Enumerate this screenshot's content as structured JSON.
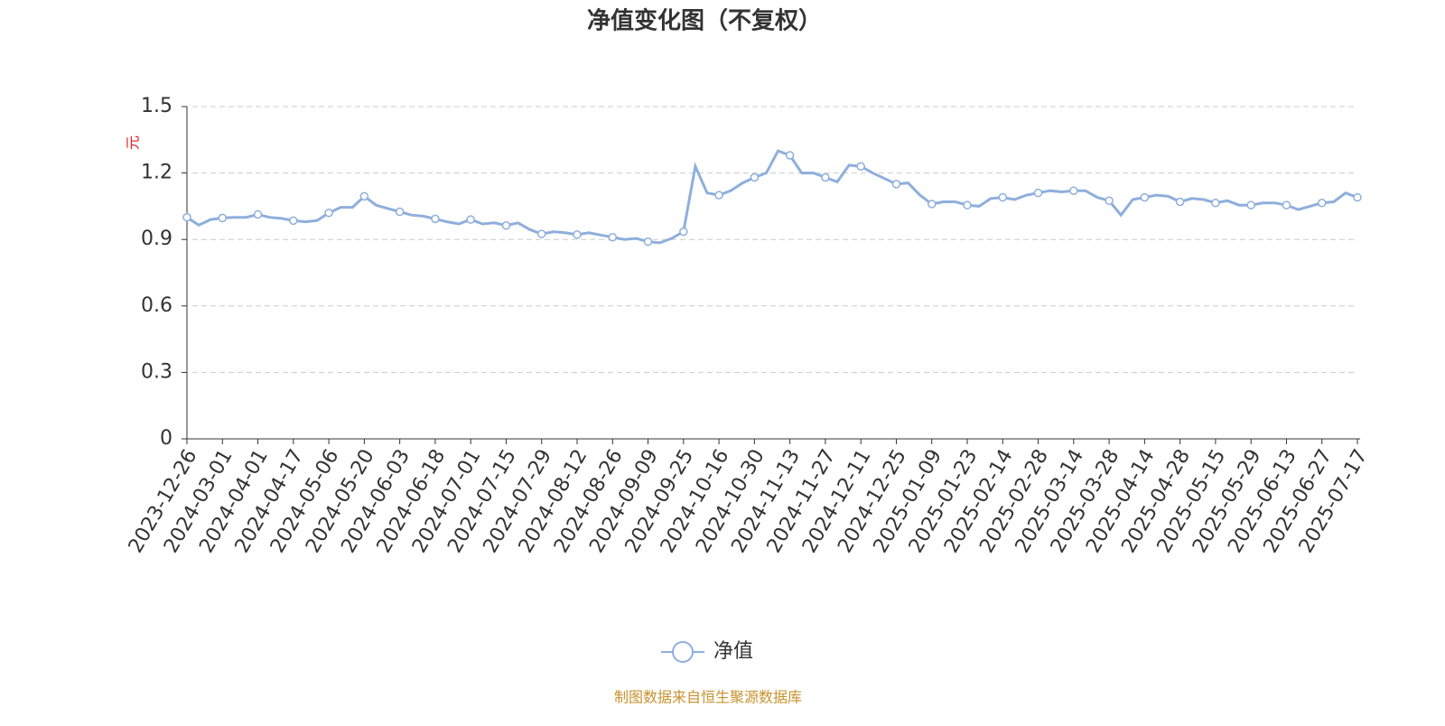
{
  "chart_data": {
    "type": "line",
    "title": "净值变化图（不复权）",
    "y_label": "元",
    "source": "制图数据来自恒生聚源数据库",
    "categories": [
      "2023-12-26",
      null,
      null,
      "2024-03-01",
      null,
      null,
      "2024-04-01",
      null,
      null,
      "2024-04-17",
      null,
      null,
      "2024-05-06",
      null,
      null,
      "2024-05-20",
      null,
      null,
      "2024-06-03",
      null,
      null,
      "2024-06-18",
      null,
      null,
      "2024-07-01",
      null,
      null,
      "2024-07-15",
      null,
      null,
      "2024-07-29",
      null,
      null,
      "2024-08-12",
      null,
      null,
      "2024-08-26",
      null,
      null,
      "2024-09-09",
      null,
      null,
      "2024-09-25",
      null,
      null,
      "2024-10-16",
      null,
      null,
      "2024-10-30",
      null,
      null,
      "2024-11-13",
      null,
      null,
      "2024-11-27",
      null,
      null,
      "2024-12-11",
      null,
      null,
      "2024-12-25",
      null,
      null,
      "2025-01-09",
      null,
      null,
      "2025-01-23",
      null,
      null,
      "2025-02-14",
      null,
      null,
      "2025-02-28",
      null,
      null,
      "2025-03-14",
      null,
      null,
      "2025-03-28",
      null,
      null,
      "2025-04-14",
      null,
      null,
      "2025-04-28",
      null,
      null,
      "2025-05-15",
      null,
      null,
      "2025-05-29",
      null,
      null,
      "2025-06-13",
      null,
      null,
      "2025-06-27",
      null,
      null,
      "2025-07-17"
    ],
    "series": [
      {
        "name": "净值",
        "color": "#8eafdc",
        "values": [
          1.0,
          0.965,
          0.99,
          0.997,
          1.0,
          1.0,
          1.013,
          1.0,
          0.995,
          0.985,
          0.98,
          0.985,
          1.02,
          1.045,
          1.045,
          1.095,
          1.055,
          1.04,
          1.025,
          1.01,
          1.005,
          0.993,
          0.98,
          0.97,
          0.99,
          0.97,
          0.975,
          0.963,
          0.975,
          0.945,
          0.925,
          0.935,
          0.93,
          0.922,
          0.93,
          0.92,
          0.91,
          0.9,
          0.905,
          0.89,
          0.885,
          0.905,
          0.935,
          1.23,
          1.11,
          1.1,
          1.12,
          1.155,
          1.18,
          1.2,
          1.3,
          1.28,
          1.2,
          1.2,
          1.18,
          1.16,
          1.235,
          1.23,
          1.2,
          1.175,
          1.15,
          1.155,
          1.1,
          1.06,
          1.07,
          1.07,
          1.055,
          1.05,
          1.085,
          1.09,
          1.08,
          1.1,
          1.11,
          1.12,
          1.115,
          1.12,
          1.12,
          1.09,
          1.075,
          1.01,
          1.08,
          1.09,
          1.1,
          1.095,
          1.07,
          1.085,
          1.08,
          1.065,
          1.075,
          1.055,
          1.055,
          1.065,
          1.065,
          1.055,
          1.035,
          1.05,
          1.065,
          1.07,
          1.11,
          1.09
        ]
      }
    ],
    "ylim": [
      0,
      1.5
    ],
    "yticks": [
      0,
      0.3,
      0.6,
      0.9,
      1.2,
      1.5
    ],
    "grid": true
  }
}
